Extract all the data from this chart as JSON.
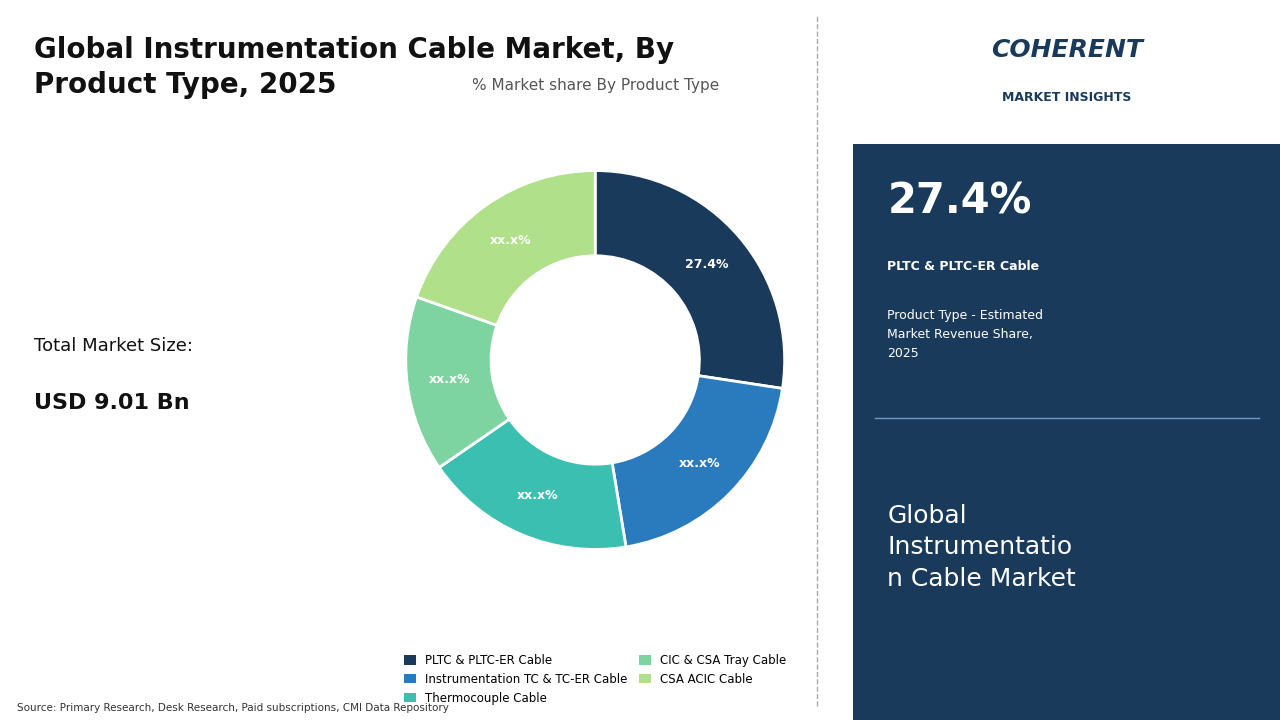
{
  "title": "Global Instrumentation Cable Market, By\nProduct Type, 2025",
  "subtitle": "% Market share By Product Type",
  "market_size_label": "Total Market Size:",
  "market_size_value": "USD 9.01 Bn",
  "source_text": "Source: Primary Research, Desk Research, Paid subscriptions, CMI Data Repository",
  "segments": [
    {
      "label": "PLTC & PLTC-ER Cable",
      "value": 27.4,
      "display": "27.4%",
      "color": "#1a3a5c"
    },
    {
      "label": "Instrumentation TC & TC-ER Cable",
      "value": 20.0,
      "display": "xx.x%",
      "color": "#2a7bbd"
    },
    {
      "label": "Thermocouple Cable",
      "value": 18.0,
      "display": "xx.x%",
      "color": "#3bbfb0"
    },
    {
      "label": "CIC & CSA Tray Cable",
      "value": 15.0,
      "display": "xx.x%",
      "color": "#7dd4a0"
    },
    {
      "label": "CSA ACIC Cable",
      "value": 19.6,
      "display": "xx.x%",
      "color": "#b0e08a"
    }
  ],
  "right_panel_bg": "#1a3a5c",
  "highlight_pct": "27.4%",
  "highlight_label": "PLTC & PLTC-ER Cable",
  "highlight_desc": "Product Type - Estimated\nMarket Revenue Share,\n2025",
  "bottom_label": "Global\nInstrumentatio\nn Cable Market",
  "coherent_line1": "COHERENT",
  "coherent_line2": "MARKET INSIGHTS"
}
